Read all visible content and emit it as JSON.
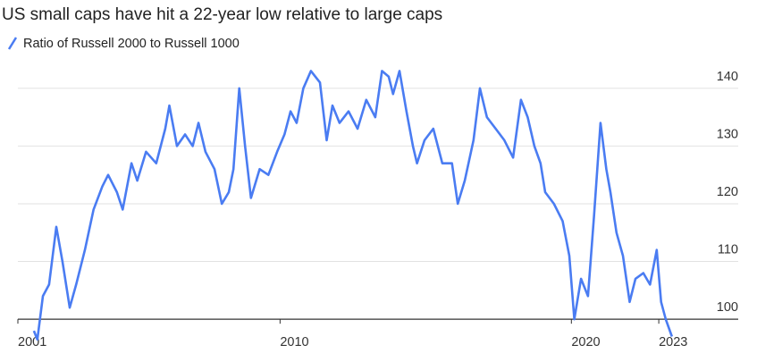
{
  "chart_data": {
    "type": "line",
    "title": "US small caps have hit a 22-year low relative to large caps",
    "x": [
      2001.55,
      2001.67,
      2001.86,
      2002.07,
      2002.32,
      2002.53,
      2002.78,
      2003.0,
      2003.3,
      2003.6,
      2003.9,
      2004.1,
      2004.4,
      2004.6,
      2004.9,
      2005.1,
      2005.4,
      2005.75,
      2006.06,
      2006.2,
      2006.46,
      2006.74,
      2007.0,
      2007.2,
      2007.44,
      2007.75,
      2008.0,
      2008.24,
      2008.4,
      2008.6,
      2008.8,
      2009.0,
      2009.3,
      2009.6,
      2009.9,
      2010.15,
      2010.36,
      2010.57,
      2010.8,
      2011.06,
      2011.37,
      2011.6,
      2011.8,
      2012.04,
      2012.35,
      2012.66,
      2012.96,
      2013.27,
      2013.5,
      2013.73,
      2013.88,
      2014.1,
      2014.34,
      2014.56,
      2014.7,
      2014.96,
      2015.26,
      2015.57,
      2015.9,
      2016.1,
      2016.34,
      2016.64,
      2016.86,
      2017.1,
      2017.4,
      2017.7,
      2018.0,
      2018.27,
      2018.5,
      2018.73,
      2018.94,
      2019.1,
      2019.4,
      2019.7,
      2019.93,
      2020.1,
      2020.33,
      2020.57,
      2020.78,
      2021.0,
      2021.2,
      2021.34,
      2021.55,
      2021.77,
      2022.0,
      2022.2,
      2022.47,
      2022.7,
      2022.93,
      2023.08,
      2023.24,
      2023.45
    ],
    "series": [
      {
        "name": "Ratio of Russell 2000 to Russell 1000",
        "color": "#4a7cf2",
        "values": [
          98,
          96.5,
          104,
          106,
          116,
          110,
          102,
          106,
          112,
          119,
          123,
          125,
          122,
          119,
          127,
          124,
          129,
          127,
          133,
          137,
          130,
          132,
          130,
          134,
          129,
          126,
          120,
          122,
          126,
          140,
          130,
          121,
          126,
          125,
          129,
          132,
          136,
          134,
          140,
          143,
          141,
          131,
          137,
          134,
          136,
          133,
          138,
          135,
          143,
          142,
          139,
          143,
          136,
          130,
          127,
          131,
          133,
          127,
          127,
          120,
          124,
          131,
          140,
          135,
          133,
          131,
          128,
          138,
          135,
          130,
          127,
          122,
          120,
          117,
          111,
          100,
          107,
          104,
          118,
          134,
          126,
          122,
          115,
          111,
          103,
          107,
          108,
          106,
          112,
          103,
          100,
          97
        ]
      }
    ],
    "xlim": [
      2001,
      2024.5
    ],
    "xticks": [
      2001,
      2010,
      2020,
      2023
    ],
    "ylim": [
      96,
      146
    ],
    "yticks": [
      100,
      110,
      120,
      130,
      140
    ],
    "grid": true
  }
}
